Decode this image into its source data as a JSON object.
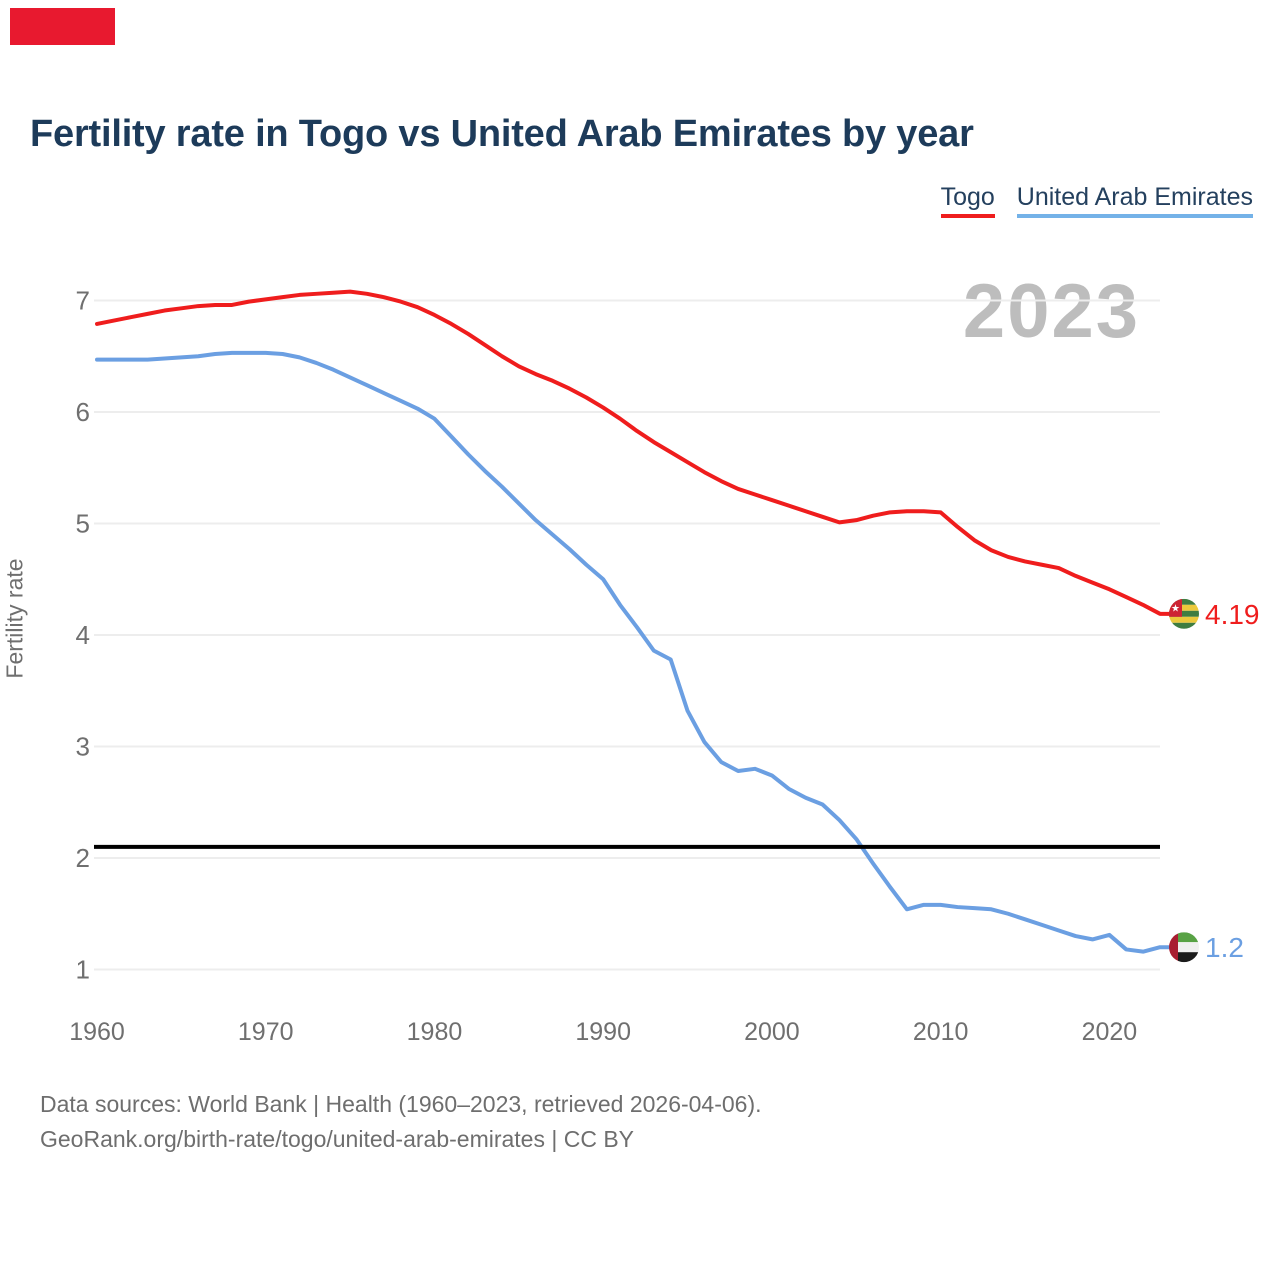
{
  "branding": {
    "logo_color": "#e8192f"
  },
  "title": "Fertility rate in Togo vs United Arab Emirates by year",
  "watermark": "2023",
  "legend": {
    "items": [
      {
        "label": "Togo",
        "color": "#ef1d1d"
      },
      {
        "label": "United Arab Emirates",
        "color": "#74b2e8"
      }
    ]
  },
  "footer": {
    "line1": "Data sources: World Bank | Health (1960–2023, retrieved 2026-04-06).",
    "line2": "GeoRank.org/birth-rate/togo/united-arab-emirates | CC BY"
  },
  "chart_data": {
    "type": "line",
    "title": "Fertility rate in Togo vs United Arab Emirates by year",
    "xlabel": "",
    "ylabel": "Fertility rate",
    "xlim": [
      1960,
      2023
    ],
    "ylim": [
      1,
      7
    ],
    "grid": "horizontal",
    "gridline_color": "#ededed",
    "y_ticks": [
      1,
      2,
      3,
      4,
      5,
      6,
      7
    ],
    "x_ticks": [
      1960,
      1970,
      1980,
      1990,
      2000,
      2010,
      2020
    ],
    "reference_line": {
      "value": 2.1,
      "color": "#000000"
    },
    "x": [
      1960,
      1961,
      1962,
      1963,
      1964,
      1965,
      1966,
      1967,
      1968,
      1969,
      1970,
      1971,
      1972,
      1973,
      1974,
      1975,
      1976,
      1977,
      1978,
      1979,
      1980,
      1981,
      1982,
      1983,
      1984,
      1985,
      1986,
      1987,
      1988,
      1989,
      1990,
      1991,
      1992,
      1993,
      1994,
      1995,
      1996,
      1997,
      1998,
      1999,
      2000,
      2001,
      2002,
      2003,
      2004,
      2005,
      2006,
      2007,
      2008,
      2009,
      2010,
      2011,
      2012,
      2013,
      2014,
      2015,
      2016,
      2017,
      2018,
      2019,
      2020,
      2021,
      2022,
      2023
    ],
    "series": [
      {
        "name": "Togo",
        "color": "#ef1d1d",
        "end_label": "4.19",
        "values": [
          6.79,
          6.82,
          6.85,
          6.88,
          6.91,
          6.93,
          6.95,
          6.96,
          6.96,
          6.99,
          7.01,
          7.03,
          7.05,
          7.06,
          7.07,
          7.08,
          7.06,
          7.03,
          6.99,
          6.94,
          6.87,
          6.79,
          6.7,
          6.6,
          6.5,
          6.41,
          6.34,
          6.28,
          6.21,
          6.13,
          6.04,
          5.94,
          5.83,
          5.73,
          5.64,
          5.55,
          5.46,
          5.38,
          5.31,
          5.26,
          5.21,
          5.16,
          5.11,
          5.06,
          5.01,
          5.03,
          5.07,
          5.1,
          5.11,
          5.11,
          5.1,
          4.97,
          4.85,
          4.76,
          4.7,
          4.66,
          4.63,
          4.6,
          4.53,
          4.47,
          4.41,
          4.34,
          4.27,
          4.19
        ]
      },
      {
        "name": "United Arab Emirates",
        "color": "#6b9fe2",
        "end_label": "1.2",
        "values": [
          6.47,
          6.47,
          6.47,
          6.47,
          6.48,
          6.49,
          6.5,
          6.52,
          6.53,
          6.53,
          6.53,
          6.52,
          6.49,
          6.44,
          6.38,
          6.31,
          6.24,
          6.17,
          6.1,
          6.03,
          5.94,
          5.78,
          5.62,
          5.47,
          5.33,
          5.18,
          5.03,
          4.9,
          4.77,
          4.63,
          4.5,
          4.27,
          4.07,
          3.86,
          3.78,
          3.32,
          3.04,
          2.86,
          2.78,
          2.8,
          2.74,
          2.62,
          2.54,
          2.48,
          2.34,
          2.17,
          1.95,
          1.74,
          1.54,
          1.58,
          1.58,
          1.56,
          1.55,
          1.54,
          1.5,
          1.45,
          1.4,
          1.35,
          1.3,
          1.27,
          1.31,
          1.18,
          1.16,
          1.2
        ]
      }
    ]
  }
}
